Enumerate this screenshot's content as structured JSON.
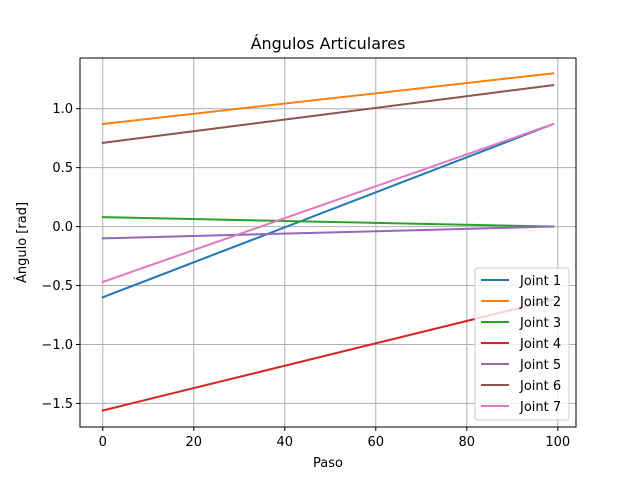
{
  "chart_data": {
    "type": "line",
    "title": "Ángulos Articulares",
    "xlabel": "Paso",
    "ylabel": "Ángulo [rad]",
    "xlim": [
      -5,
      104
    ],
    "ylim": [
      -1.7,
      1.43
    ],
    "xticks": [
      0,
      20,
      40,
      60,
      80,
      100
    ],
    "xtick_labels": [
      "0",
      "20",
      "40",
      "60",
      "80",
      "100"
    ],
    "yticks": [
      -1.5,
      -1.0,
      -0.5,
      0.0,
      0.5,
      1.0
    ],
    "ytick_labels": [
      "−1.5",
      "−1.0",
      "−0.5",
      "0.0",
      "0.5",
      "1.0"
    ],
    "grid": true,
    "legend_position": "lower-right",
    "series": [
      {
        "name": "Joint 1",
        "color": "#1f77b4",
        "x": [
          0,
          99
        ],
        "y": [
          -0.6,
          0.87
        ]
      },
      {
        "name": "Joint 2",
        "color": "#ff7f0e",
        "x": [
          0,
          99
        ],
        "y": [
          0.87,
          1.3
        ]
      },
      {
        "name": "Joint 3",
        "color": "#2ca02c",
        "x": [
          0,
          99
        ],
        "y": [
          0.08,
          0.0
        ]
      },
      {
        "name": "Joint 4",
        "color": "#d62728",
        "x": [
          0,
          99
        ],
        "y": [
          -1.56,
          -0.62
        ]
      },
      {
        "name": "Joint 5",
        "color": "#9467bd",
        "x": [
          0,
          99
        ],
        "y": [
          -0.1,
          0.0
        ]
      },
      {
        "name": "Joint 6",
        "color": "#8c564b",
        "x": [
          0,
          99
        ],
        "y": [
          0.71,
          1.2
        ]
      },
      {
        "name": "Joint 7",
        "color": "#e377c2",
        "x": [
          0,
          99
        ],
        "y": [
          -0.47,
          0.87
        ]
      }
    ]
  }
}
